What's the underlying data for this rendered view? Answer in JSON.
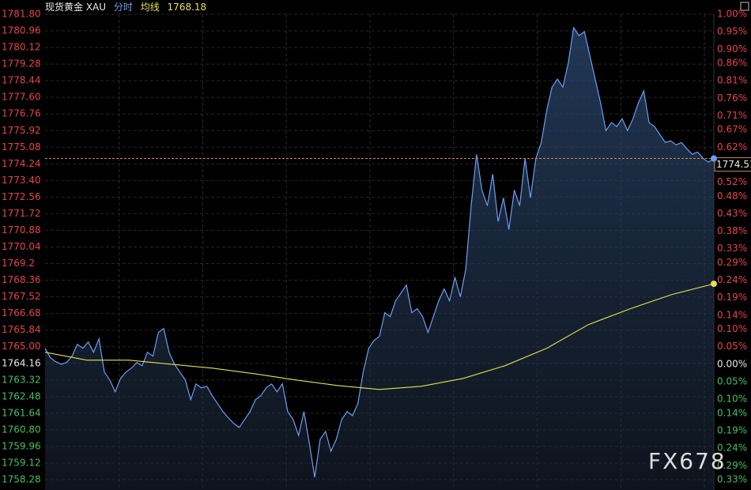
{
  "chart_data": {
    "type": "line",
    "title": "现货黄金 XAU",
    "view": "分时",
    "series": [
      {
        "color": "#6c9ef2",
        "values": [
          1764.92,
          1764.44,
          1764.24,
          1764.12,
          1764.2,
          1764.52,
          1765.12,
          1764.92,
          1765.24,
          1764.72,
          1765.4,
          1763.72,
          1763.32,
          1762.72,
          1763.4,
          1763.72,
          1763.92,
          1764.2,
          1764.04,
          1764.72,
          1764.52,
          1765.72,
          1765.92,
          1764.72,
          1764.12,
          1763.72,
          1763.32,
          1762.32,
          1763.12,
          1762.92,
          1763.0,
          1762.52,
          1762.12,
          1761.72,
          1761.4,
          1761.12,
          1760.92,
          1761.32,
          1761.72,
          1762.32,
          1762.52,
          1762.92,
          1763.12,
          1762.72,
          1763.12,
          1761.72,
          1761.32,
          1760.52,
          1761.72,
          1760.12,
          1758.4,
          1760.32,
          1760.72,
          1759.72,
          1760.32,
          1761.32,
          1761.72,
          1761.52,
          1762.12,
          1763.72,
          1764.92,
          1765.32,
          1765.52,
          1766.72,
          1766.52,
          1767.32,
          1767.72,
          1768.12,
          1766.72,
          1766.92,
          1766.52,
          1765.72,
          1766.52,
          1767.32,
          1767.92,
          1767.32,
          1768.52,
          1767.52,
          1768.92,
          1772.12,
          1774.72,
          1772.92,
          1772.12,
          1773.72,
          1771.32,
          1772.52,
          1770.92,
          1772.92,
          1772.12,
          1774.52,
          1772.52,
          1774.52,
          1775.32,
          1776.92,
          1778.12,
          1778.52,
          1778.12,
          1779.32,
          1781.12,
          1780.72,
          1780.92,
          1779.72,
          1778.52,
          1777.32,
          1775.92,
          1776.32,
          1776.12,
          1776.52,
          1775.92,
          1776.52,
          1777.32,
          1777.92,
          1776.32,
          1776.12,
          1775.72,
          1775.32,
          1775.4,
          1775.2,
          1775.32,
          1775.0,
          1774.72,
          1774.84,
          1774.52,
          1774.32,
          1774.51
        ]
      },
      {
        "name": "均线",
        "color": "#e6e24a",
        "values": [
          1764.72,
          1764.32,
          1764.32,
          1764.12,
          1763.92,
          1763.64,
          1763.32,
          1763.04,
          1762.84,
          1763.0,
          1763.4,
          1764.04,
          1764.92,
          1766.12,
          1766.92,
          1767.64,
          1768.18
        ]
      }
    ],
    "ylim": [
      1758.28,
      1781.8
    ],
    "yticks": [
      {
        "value": 1781.8,
        "label": "1781.80"
      },
      1780.96,
      1780.12,
      1779.28,
      1778.44,
      {
        "value": 1777.6,
        "label": "1777.60"
      },
      1776.76,
      1775.92,
      1775.08,
      1774.24,
      {
        "value": 1773.4,
        "label": "1773.40"
      },
      1772.56,
      1771.72,
      1770.88,
      1770.04,
      1769.2,
      1768.36,
      1767.52,
      1766.68,
      1765.84,
      {
        "value": 1765,
        "label": "1765.00"
      },
      1764.16,
      1763.32,
      1762.48,
      1761.64,
      {
        "value": 1760.8,
        "label": "1760.80"
      },
      1759.96,
      1759.12,
      1758.28
    ],
    "y2lim": [
      -0.33,
      1.0
    ],
    "y2ticks": [
      {
        "value": 1,
        "label": "1.00%"
      },
      {
        "value": 0.95,
        "label": "0.95%"
      },
      {
        "value": 0.9,
        "label": "0.90%"
      },
      {
        "value": 0.86,
        "label": "0.86%"
      },
      {
        "value": 0.81,
        "label": "0.81%"
      },
      {
        "value": 0.76,
        "label": "0.76%"
      },
      {
        "value": 0.71,
        "label": "0.71%"
      },
      {
        "value": 0.67,
        "label": "0.67%"
      },
      {
        "value": 0.62,
        "label": "0.62%"
      },
      {
        "value": 0.57,
        "label": "0.57%"
      },
      {
        "value": 0.52,
        "label": "0.52%"
      },
      {
        "value": 0.48,
        "label": "0.48%"
      },
      {
        "value": 0.43,
        "label": "0.43%"
      },
      {
        "value": 0.38,
        "label": "0.38%"
      },
      {
        "value": 0.33,
        "label": "0.33%"
      },
      {
        "value": 0.29,
        "label": "0.29%"
      },
      {
        "value": 0.24,
        "label": "0.24%"
      },
      {
        "value": 0.19,
        "label": "0.19%"
      },
      {
        "value": 0.14,
        "label": "0.14%"
      },
      {
        "value": 0.1,
        "label": "0.10%"
      },
      {
        "value": 0.05,
        "label": "0.05%"
      },
      {
        "value": 0,
        "label": "0.00%"
      },
      {
        "value": -0.05,
        "label": "0.05%"
      },
      {
        "value": -0.1,
        "label": "0.10%"
      },
      {
        "value": -0.14,
        "label": "0.14%"
      },
      {
        "value": -0.19,
        "label": "0.19%"
      },
      {
        "value": -0.24,
        "label": "0.24%"
      },
      {
        "value": -0.29,
        "label": "0.29%"
      },
      {
        "value": -0.33,
        "label": "0.33%"
      }
    ],
    "up_color": "#e8414d",
    "down_color": "#3fc25e",
    "flat_color": "#e8e8e8",
    "grid": true,
    "watermark": "FX678"
  }
}
